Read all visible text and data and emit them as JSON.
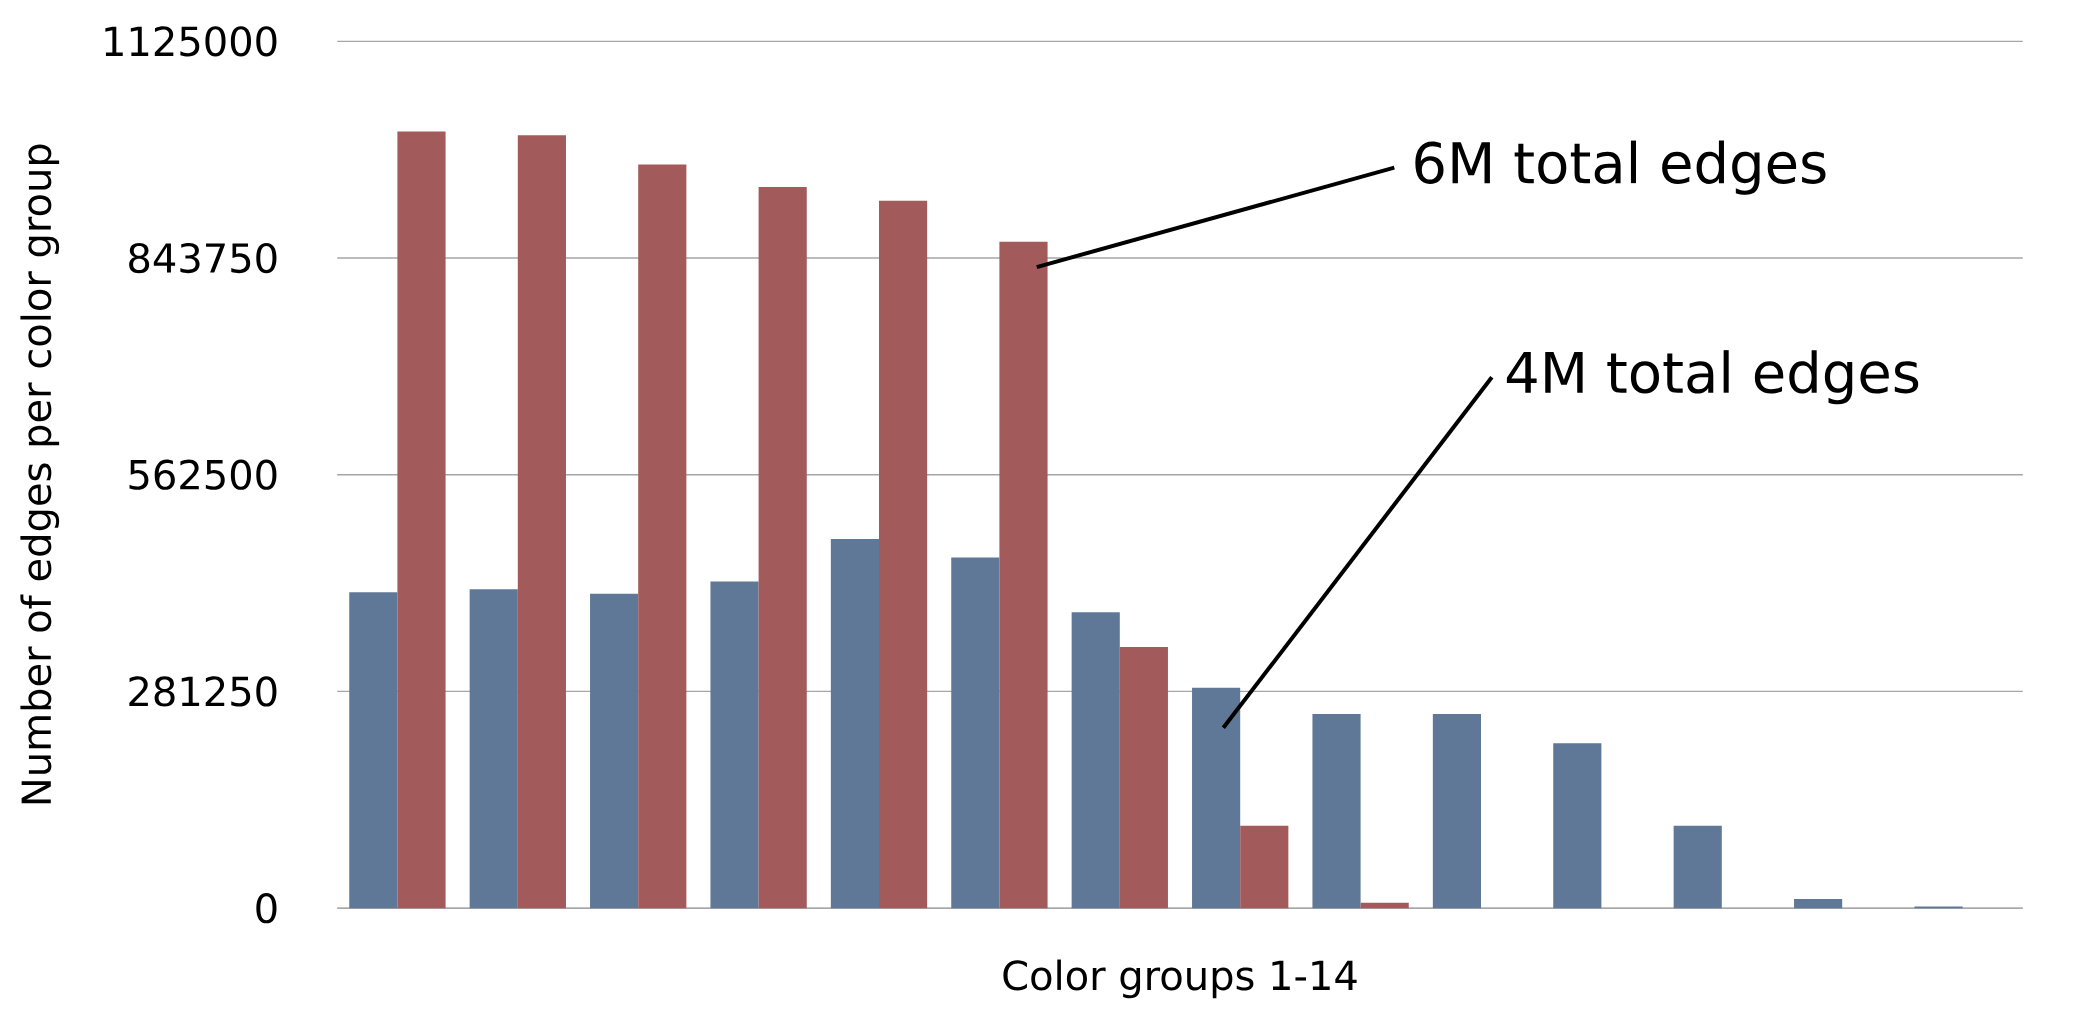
{
  "chart_data": {
    "type": "bar",
    "categories": [
      null,
      null,
      null,
      null,
      null,
      null,
      null,
      null,
      null,
      null,
      null,
      null,
      null,
      null
    ],
    "series": [
      {
        "color": "#5f7897",
        "values": [
          410000,
          414000,
          408000,
          424000,
          479000,
          455000,
          384000,
          286000,
          252000,
          252000,
          214000,
          107000,
          12000,
          2000
        ]
      },
      {
        "color": "#a35a5a",
        "values": [
          1008000,
          1003000,
          965000,
          936000,
          918000,
          865000,
          339000,
          107000,
          7000,
          null,
          null,
          null,
          null,
          null
        ]
      }
    ],
    "ylim": [
      0,
      1125000
    ],
    "yticks": [
      0,
      281250,
      562500,
      843750,
      1125000
    ],
    "ylabel": "Number of edges per color group",
    "xlabel": "Color groups 1-14",
    "annotations": [
      "6M total edges",
      "4M total edges"
    ],
    "grid": "y"
  }
}
